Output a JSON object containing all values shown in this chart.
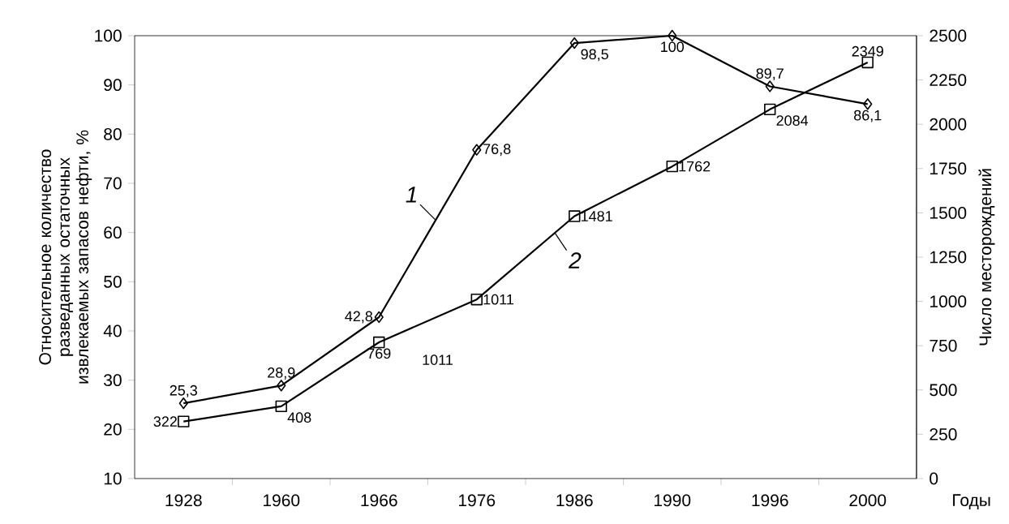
{
  "chart_data": {
    "type": "line",
    "categories": [
      "1928",
      "1960",
      "1966",
      "1976",
      "1986",
      "1990",
      "1996",
      "2000"
    ],
    "series": [
      {
        "name": "1",
        "color": "#000000",
        "marker": "diamond",
        "values": [
          25.3,
          28.9,
          42.8,
          76.8,
          98.5,
          100,
          89.7,
          86.1
        ],
        "value_labels": [
          "25,3",
          "28,9",
          "42,8",
          "76,8",
          "98,5",
          "100",
          "89,7",
          "86,1"
        ]
      },
      {
        "name": "2",
        "color": "#000000",
        "marker": "square",
        "axis": "y2",
        "values": [
          322,
          408,
          769,
          1011,
          1481,
          1762,
          2084,
          2349
        ],
        "value_labels": [
          "322",
          "408",
          "769",
          "1011",
          "1481",
          "1762",
          "2084",
          "2349"
        ]
      }
    ],
    "line_style": "solid",
    "xlabel": "Годы",
    "ylabel": "Относительное количество разведанных остаточных извлекаемых запасов нефти, %",
    "y2label": "Число месторождений",
    "ylim": [
      10,
      100
    ],
    "yticks": [
      10,
      20,
      30,
      40,
      50,
      60,
      70,
      80,
      90,
      100
    ],
    "y2lim": [
      0,
      2500
    ],
    "y2ticks": [
      0,
      250,
      500,
      750,
      1000,
      1250,
      1500,
      1750,
      2000,
      2250,
      2500
    ],
    "annotations": [
      "1011"
    ]
  }
}
